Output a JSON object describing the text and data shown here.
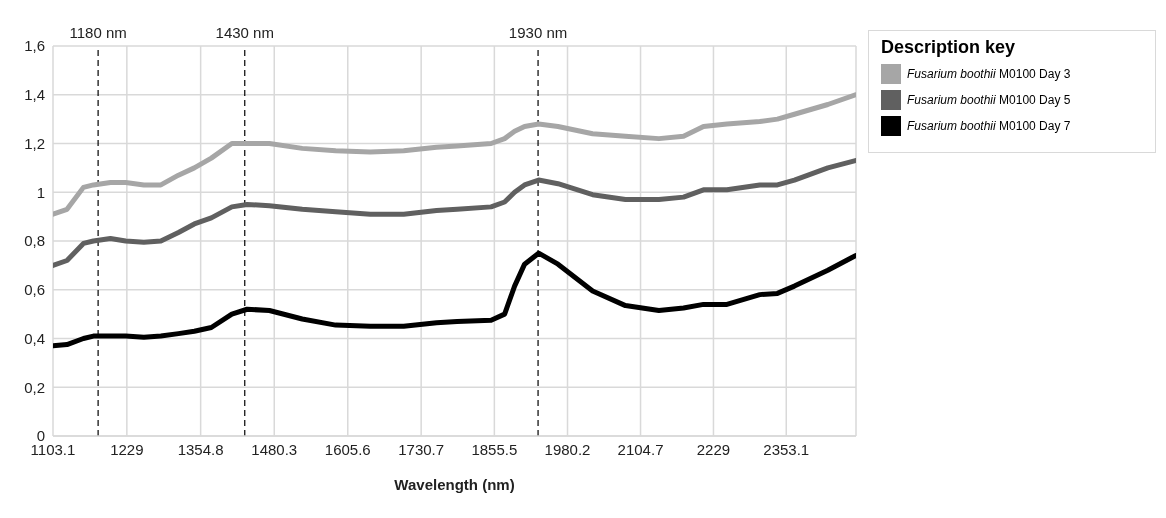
{
  "chart_data": {
    "type": "line",
    "xlabel": "Wavelength (nm)",
    "legend_title": "Description key",
    "legend": "right",
    "grid": true,
    "marker": "none",
    "line_style": "solid",
    "x": [
      1103.1,
      1127,
      1155,
      1172,
      1201,
      1227,
      1258,
      1287,
      1317,
      1344,
      1373,
      1408,
      1434,
      1472,
      1528,
      1585,
      1644,
      1701,
      1757,
      1792,
      1850,
      1873,
      1890,
      1907,
      1931,
      1964,
      2023,
      2079,
      2136,
      2178,
      2212,
      2252,
      2308,
      2338,
      2367,
      2424,
      2471
    ],
    "xlim": [
      1103.1,
      2472
    ],
    "xticks": [
      1103.1,
      1229,
      1354.8,
      1480.3,
      1605.6,
      1730.7,
      1855.5,
      1980.2,
      2104.7,
      2229,
      2353.1
    ],
    "ylim": [
      0,
      1.6
    ],
    "yticks": [
      0,
      {
        "value": 0.2,
        "label": "0,2"
      },
      {
        "value": 0.4,
        "label": "0,4"
      },
      {
        "value": 0.6,
        "label": "0,6"
      },
      {
        "value": 0.8,
        "label": "0,8"
      },
      1,
      {
        "value": 1.2,
        "label": "1,2"
      },
      {
        "value": 1.4,
        "label": "1,4"
      },
      {
        "value": 1.6,
        "label": "1,6"
      }
    ],
    "series": [
      {
        "name": "Fusarium boothii M0100 Day 3",
        "color": "#a6a6a6",
        "values": [
          0.91,
          0.93,
          1.02,
          1.03,
          1.04,
          1.04,
          1.03,
          1.03,
          1.07,
          1.1,
          1.14,
          1.2,
          1.2,
          1.2,
          1.18,
          1.17,
          1.165,
          1.17,
          1.185,
          1.19,
          1.2,
          1.22,
          1.25,
          1.27,
          1.28,
          1.27,
          1.24,
          1.23,
          1.22,
          1.23,
          1.27,
          1.28,
          1.29,
          1.3,
          1.32,
          1.36,
          1.4
        ]
      },
      {
        "name": "Fusarium boothii M0100 Day 5",
        "color": "#606060",
        "values": [
          0.7,
          0.72,
          0.79,
          0.8,
          0.81,
          0.8,
          0.795,
          0.8,
          0.835,
          0.87,
          0.895,
          0.94,
          0.95,
          0.945,
          0.93,
          0.92,
          0.91,
          0.91,
          0.925,
          0.93,
          0.94,
          0.96,
          1.0,
          1.03,
          1.05,
          1.035,
          0.99,
          0.97,
          0.97,
          0.98,
          1.01,
          1.01,
          1.03,
          1.03,
          1.05,
          1.1,
          1.13
        ]
      },
      {
        "name": "Fusarium boothii M0100 Day 7",
        "color": "#000000",
        "values": [
          0.37,
          0.375,
          0.4,
          0.41,
          0.41,
          0.41,
          0.405,
          0.41,
          0.42,
          0.43,
          0.445,
          0.5,
          0.52,
          0.515,
          0.48,
          0.455,
          0.45,
          0.45,
          0.465,
          0.47,
          0.475,
          0.5,
          0.615,
          0.705,
          0.75,
          0.705,
          0.595,
          0.535,
          0.515,
          0.525,
          0.54,
          0.54,
          0.58,
          0.585,
          0.615,
          0.68,
          0.74
        ]
      }
    ],
    "ref_lines": [
      {
        "axis": "x",
        "value": 1180,
        "label": "1180 nm",
        "color": "#000000",
        "line_style": "dashed"
      },
      {
        "axis": "x",
        "value": 1430,
        "label": "1430 nm",
        "color": "#000000",
        "line_style": "dashed"
      },
      {
        "axis": "x",
        "value": 1930,
        "label": "1930 nm",
        "color": "#000000",
        "line_style": "dashed"
      }
    ]
  }
}
